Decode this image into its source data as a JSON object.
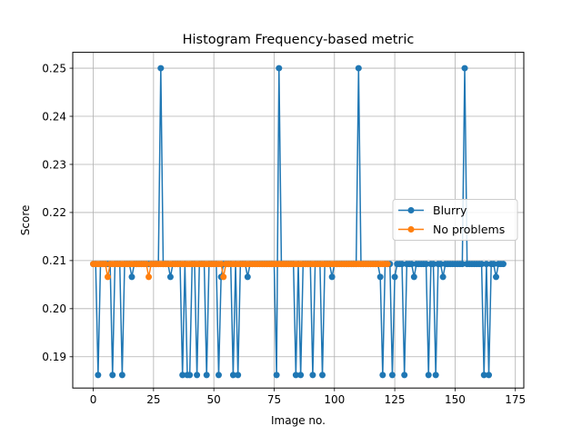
{
  "chart_data": {
    "type": "line",
    "title": "Histogram Frequency-based metric",
    "xlabel": "Image no.",
    "ylabel": "Score",
    "xlim": [
      -8.5,
      178.5
    ],
    "ylim": [
      0.1835,
      0.2533
    ],
    "xticks": [
      0,
      25,
      50,
      75,
      100,
      125,
      150,
      175
    ],
    "yticks": [
      0.19,
      0.2,
      0.21,
      0.22,
      0.23,
      0.24,
      0.25
    ],
    "ytick_labels": [
      "0.19",
      "0.20",
      "0.21",
      "0.22",
      "0.23",
      "0.24",
      "0.25"
    ],
    "grid": true,
    "legend_position": "center-right",
    "series": [
      {
        "name": "Blurry",
        "color": "#1f77b4",
        "x": [
          0,
          1,
          2,
          3,
          4,
          5,
          6,
          7,
          8,
          9,
          10,
          11,
          12,
          13,
          14,
          15,
          16,
          17,
          18,
          19,
          20,
          21,
          22,
          23,
          24,
          25,
          26,
          27,
          28,
          29,
          30,
          31,
          32,
          33,
          34,
          35,
          36,
          37,
          38,
          39,
          40,
          41,
          42,
          43,
          44,
          45,
          46,
          47,
          48,
          49,
          50,
          51,
          52,
          53,
          54,
          55,
          56,
          57,
          58,
          59,
          60,
          61,
          62,
          63,
          64,
          65,
          66,
          67,
          68,
          69,
          70,
          71,
          72,
          73,
          74,
          75,
          76,
          77,
          78,
          79,
          80,
          81,
          82,
          83,
          84,
          85,
          86,
          87,
          88,
          89,
          90,
          91,
          92,
          93,
          94,
          95,
          96,
          97,
          98,
          99,
          100,
          101,
          102,
          103,
          104,
          105,
          106,
          107,
          108,
          109,
          110,
          111,
          112,
          113,
          114,
          115,
          116,
          117,
          118,
          119,
          120,
          121,
          122,
          123,
          124,
          125,
          126,
          127,
          128,
          129,
          130,
          131,
          132,
          133,
          134,
          135,
          136,
          137,
          138,
          139,
          140,
          141,
          142,
          143,
          144,
          145,
          146,
          147,
          148,
          149,
          150,
          151,
          152,
          153,
          154,
          155,
          156,
          157,
          158,
          159,
          160,
          161,
          162,
          163,
          164,
          165,
          166,
          167,
          168,
          169,
          170
        ],
        "y": [
          0.2093,
          0.2093,
          0.1862,
          0.2093,
          0.2093,
          0.2093,
          0.2093,
          0.2093,
          0.1862,
          0.2093,
          0.2093,
          0.2093,
          0.1862,
          0.2093,
          0.2093,
          0.2093,
          0.2066,
          0.2093,
          0.2093,
          0.2093,
          0.2093,
          0.2093,
          0.2093,
          0.2093,
          0.2093,
          0.2093,
          0.2093,
          0.2093,
          0.25,
          0.2093,
          0.2093,
          0.2093,
          0.2066,
          0.2093,
          0.2093,
          0.2093,
          0.2093,
          0.1862,
          0.2093,
          0.1862,
          0.1862,
          0.2093,
          0.2093,
          0.1862,
          0.2093,
          0.2093,
          0.2093,
          0.1862,
          0.2093,
          0.2093,
          0.2093,
          0.2093,
          0.1862,
          0.2066,
          0.2093,
          0.2093,
          0.2093,
          0.2093,
          0.1862,
          0.2093,
          0.1862,
          0.2093,
          0.2093,
          0.2093,
          0.2066,
          0.2093,
          0.2093,
          0.2093,
          0.2093,
          0.2093,
          0.2093,
          0.2093,
          0.2093,
          0.2093,
          0.2093,
          0.2093,
          0.1862,
          0.25,
          0.2093,
          0.2093,
          0.2093,
          0.2093,
          0.2093,
          0.2093,
          0.1862,
          0.2093,
          0.1862,
          0.2093,
          0.2093,
          0.2093,
          0.2093,
          0.1862,
          0.2093,
          0.2093,
          0.2093,
          0.1862,
          0.2093,
          0.2093,
          0.2093,
          0.2066,
          0.2093,
          0.2093,
          0.2093,
          0.2093,
          0.2093,
          0.2093,
          0.2093,
          0.2093,
          0.2093,
          0.2093,
          0.25,
          0.2093,
          0.2093,
          0.2093,
          0.2093,
          0.2093,
          0.2093,
          0.2093,
          0.2093,
          0.2066,
          0.1862,
          0.2093,
          0.2093,
          0.2093,
          0.1862,
          0.2066,
          0.2093,
          0.2093,
          0.2093,
          0.1862,
          0.2093,
          0.2093,
          0.2093,
          0.2066,
          0.2093,
          0.2093,
          0.2093,
          0.2093,
          0.2093,
          0.1862,
          0.2093,
          0.2093,
          0.1862,
          0.2093,
          0.2093,
          0.2066,
          0.2093,
          0.2093,
          0.2093,
          0.2093,
          0.2093,
          0.2093,
          0.2093,
          0.2093,
          0.25,
          0.2093,
          0.2093,
          0.2093,
          0.2093,
          0.2093,
          0.2093,
          0.2093,
          0.1862,
          0.2093,
          0.1862,
          0.2093,
          0.2093,
          0.2066,
          0.2093,
          0.2093,
          0.2093
        ]
      },
      {
        "name": "No problems",
        "color": "#ff7f0e",
        "x": [
          0,
          1,
          2,
          3,
          4,
          5,
          6,
          7,
          8,
          9,
          10,
          11,
          12,
          13,
          14,
          15,
          16,
          17,
          18,
          19,
          20,
          21,
          22,
          23,
          24,
          25,
          26,
          27,
          28,
          29,
          30,
          31,
          32,
          33,
          34,
          35,
          36,
          37,
          38,
          39,
          40,
          41,
          42,
          43,
          44,
          45,
          46,
          47,
          48,
          49,
          50,
          51,
          52,
          53,
          54,
          55,
          56,
          57,
          58,
          59,
          60,
          61,
          62,
          63,
          64,
          65,
          66,
          67,
          68,
          69,
          70,
          71,
          72,
          73,
          74,
          75,
          76,
          77,
          78,
          79,
          80,
          81,
          82,
          83,
          84,
          85,
          86,
          87,
          88,
          89,
          90,
          91,
          92,
          93,
          94,
          95,
          96,
          97,
          98,
          99,
          100,
          101,
          102,
          103,
          104,
          105,
          106,
          107,
          108,
          109,
          110,
          111,
          112,
          113,
          114,
          115,
          116,
          117,
          118,
          119,
          120,
          121,
          122
        ],
        "y": [
          0.2093,
          0.2093,
          0.2093,
          0.2093,
          0.2093,
          0.2093,
          0.2066,
          0.2093,
          0.2093,
          0.2093,
          0.2093,
          0.2093,
          0.2093,
          0.2093,
          0.2093,
          0.2093,
          0.2093,
          0.2093,
          0.2093,
          0.2093,
          0.2093,
          0.2093,
          0.2093,
          0.2066,
          0.2093,
          0.2093,
          0.2093,
          0.2093,
          0.2093,
          0.2093,
          0.2093,
          0.2093,
          0.2093,
          0.2093,
          0.2093,
          0.2093,
          0.2093,
          0.2093,
          0.2093,
          0.2093,
          0.2093,
          0.2093,
          0.2093,
          0.2093,
          0.2093,
          0.2093,
          0.2093,
          0.2093,
          0.2093,
          0.2093,
          0.2093,
          0.2093,
          0.2093,
          0.2093,
          0.2066,
          0.2093,
          0.2093,
          0.2093,
          0.2093,
          0.2093,
          0.2093,
          0.2093,
          0.2093,
          0.2093,
          0.2093,
          0.2093,
          0.2093,
          0.2093,
          0.2093,
          0.2093,
          0.2093,
          0.2093,
          0.2093,
          0.2093,
          0.2093,
          0.2093,
          0.2093,
          0.2093,
          0.2093,
          0.2093,
          0.2093,
          0.2093,
          0.2093,
          0.2093,
          0.2093,
          0.2093,
          0.2093,
          0.2093,
          0.2093,
          0.2093,
          0.2093,
          0.2093,
          0.2093,
          0.2093,
          0.2093,
          0.2093,
          0.2093,
          0.2093,
          0.2093,
          0.2093,
          0.2093,
          0.2093,
          0.2093,
          0.2093,
          0.2093,
          0.2093,
          0.2093,
          0.2093,
          0.2093,
          0.2093,
          0.2093,
          0.2093,
          0.2093,
          0.2093,
          0.2093,
          0.2093,
          0.2093,
          0.2093,
          0.2093,
          0.2093,
          0.2093,
          0.2093,
          0.2093
        ]
      }
    ]
  }
}
